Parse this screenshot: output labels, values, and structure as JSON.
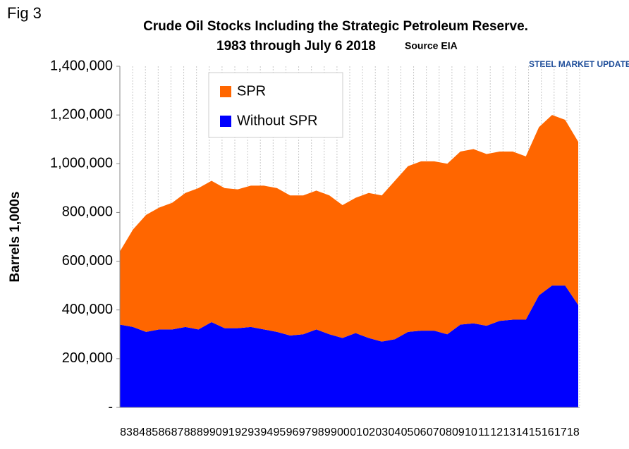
{
  "chart_data": {
    "type": "stacked_area",
    "figure_label": "Fig 3",
    "title": "Crude Oil Stocks Including the Strategic Petroleum Reserve.",
    "subtitle": "1983 through July 6 2018",
    "source": "Source EIA",
    "logo": "STEEL MARKET UPDATE",
    "y_label": "Barrels 1,000s",
    "categories": [
      "83",
      "84",
      "85",
      "86",
      "87",
      "88",
      "89",
      "90",
      "91",
      "92",
      "93",
      "94",
      "95",
      "96",
      "97",
      "98",
      "99",
      "00",
      "01",
      "02",
      "03",
      "04",
      "05",
      "06",
      "07",
      "08",
      "09",
      "10",
      "11",
      "12",
      "13",
      "14",
      "15",
      "16",
      "17",
      "18"
    ],
    "series": [
      {
        "name": "SPR",
        "color": "#ff6600",
        "values": [
          300000,
          400000,
          480000,
          500000,
          520000,
          550000,
          580000,
          580000,
          575000,
          570000,
          580000,
          590000,
          590000,
          575000,
          570000,
          570000,
          570000,
          545000,
          555000,
          595000,
          600000,
          650000,
          680000,
          695000,
          695000,
          700000,
          710000,
          715000,
          705000,
          695000,
          690000,
          670000,
          690000,
          700000,
          680000,
          670000
        ]
      },
      {
        "name": "Without SPR",
        "color": "#0000ff",
        "values": [
          340000,
          330000,
          310000,
          320000,
          320000,
          330000,
          320000,
          350000,
          325000,
          325000,
          330000,
          320000,
          310000,
          295000,
          300000,
          320000,
          300000,
          285000,
          305000,
          285000,
          270000,
          280000,
          310000,
          315000,
          315000,
          300000,
          340000,
          345000,
          335000,
          355000,
          360000,
          360000,
          460000,
          500000,
          500000,
          420000
        ]
      }
    ],
    "ylim": [
      0,
      1400000
    ],
    "yticks": [
      {
        "value": 0,
        "label": "-"
      },
      {
        "value": 200000,
        "label": "200,000"
      },
      {
        "value": 400000,
        "label": "400,000"
      },
      {
        "value": 600000,
        "label": "600,000"
      },
      {
        "value": 800000,
        "label": "800,000"
      },
      {
        "value": 1000000,
        "label": "1,000,000"
      },
      {
        "value": 1200000,
        "label": "1,200,000"
      },
      {
        "value": 1400000,
        "label": "1,400,000"
      }
    ],
    "grid": true
  }
}
